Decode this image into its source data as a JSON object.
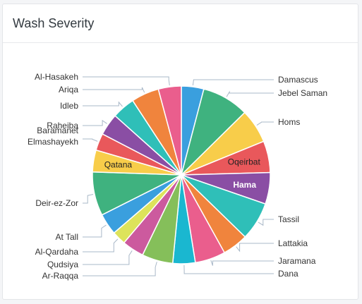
{
  "card": {
    "title": "Wash Severity"
  },
  "chart_data": {
    "type": "pie",
    "title": "Wash Severity",
    "slices": [
      {
        "label": "Damascus",
        "value": 4.2,
        "color": "#3a9fde",
        "inside": false
      },
      {
        "label": "Jebel Saman",
        "value": 8.8,
        "color": "#3fb27f",
        "inside": false
      },
      {
        "label": "Homs",
        "value": 6.4,
        "color": "#f8cd4a",
        "inside": false
      },
      {
        "label": "Oqeirbat",
        "value": 5.9,
        "color": "#e9585b",
        "inside": true
      },
      {
        "label": "Hama",
        "value": 5.9,
        "color": "#8a4ea4",
        "inside": true
      },
      {
        "label": "Tassil",
        "value": 7.2,
        "color": "#2fbfb8",
        "inside": false
      },
      {
        "label": "Lattakia",
        "value": 4.8,
        "color": "#f0843d",
        "inside": false
      },
      {
        "label": "Jaramana",
        "value": 5.7,
        "color": "#ea5e8d",
        "inside": false
      },
      {
        "label": "Dana",
        "value": 4.2,
        "color": "#1ab7d0",
        "inside": false
      },
      {
        "label": "Ar-Raqqa",
        "value": 5.8,
        "color": "#85bf5a",
        "inside": false
      },
      {
        "label": "Qudsiya",
        "value": 4.1,
        "color": "#cc5a9e",
        "inside": false
      },
      {
        "label": "Al-Qardaha",
        "value": 2.6,
        "color": "#dde35b",
        "inside": false
      },
      {
        "label": "At Tall",
        "value": 4.0,
        "color": "#3a9fde",
        "inside": false
      },
      {
        "label": "Deir-ez-Zor",
        "value": 8.2,
        "color": "#3fb27f",
        "inside": false
      },
      {
        "label": "Qatana",
        "value": 4.1,
        "color": "#f8cd4a",
        "inside": true
      },
      {
        "label": "Baramanet Elmashayekh",
        "value": 3.2,
        "color": "#e9585b",
        "inside": false
      },
      {
        "label": "Raheiba",
        "value": 4.1,
        "color": "#8a4ea4",
        "inside": false
      },
      {
        "label": "Idleb",
        "value": 4.3,
        "color": "#2fbfb8",
        "inside": false
      },
      {
        "label": "Ariqa",
        "value": 5.2,
        "color": "#f0843d",
        "inside": false
      },
      {
        "label": "Al-Hasakeh",
        "value": 4.3,
        "color": "#ea5e8d",
        "inside": false
      }
    ]
  }
}
